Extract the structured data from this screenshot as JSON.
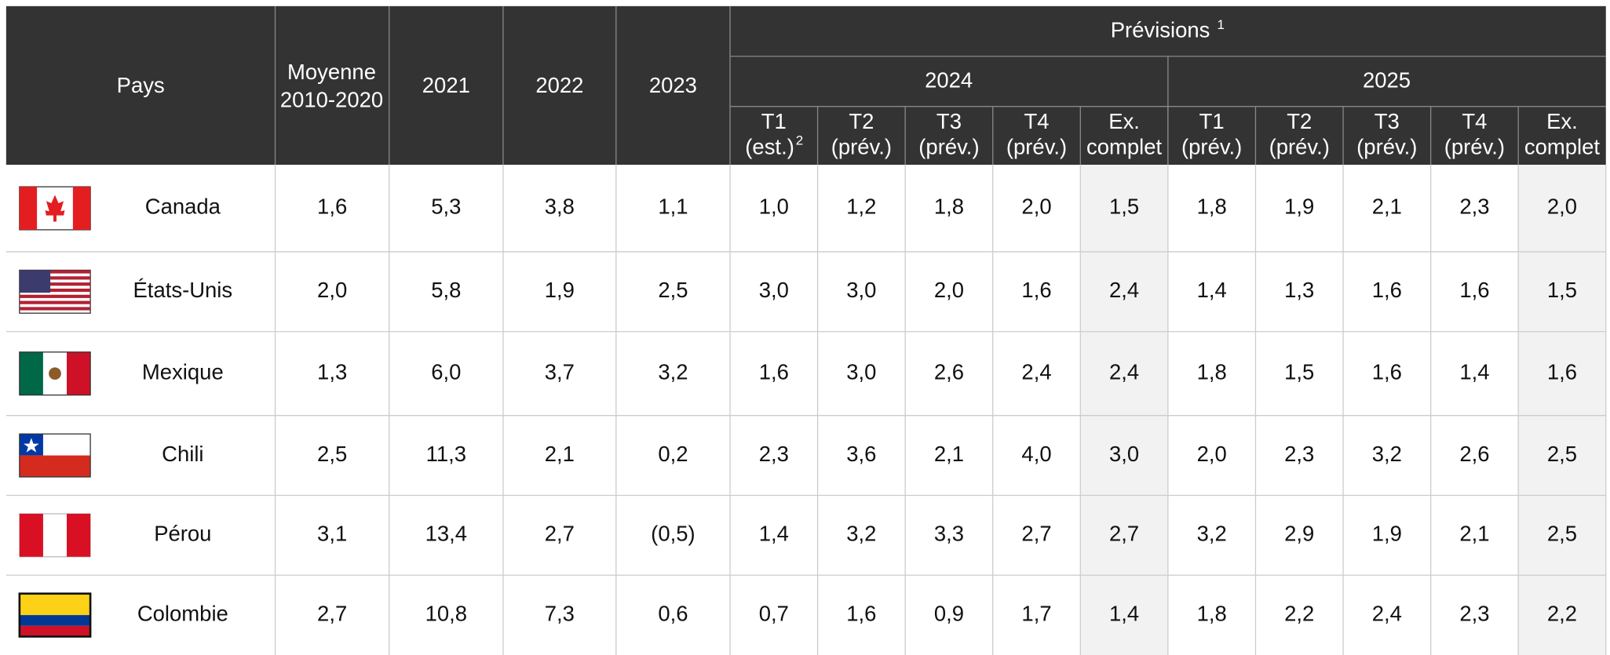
{
  "header": {
    "country": "Pays",
    "average": [
      "Moyenne",
      "2010-2020"
    ],
    "years": [
      "2021",
      "2022",
      "2023"
    ],
    "forecast": "Prévisions",
    "forecast_note": "1",
    "groups": [
      "2024",
      "2025"
    ],
    "subcolumns": [
      {
        "lines": [
          "T1",
          "(est.)"
        ],
        "note": "2"
      },
      {
        "lines": [
          "T2",
          "(prév.)"
        ]
      },
      {
        "lines": [
          "T3",
          "(prév.)"
        ]
      },
      {
        "lines": [
          "T4",
          "(prév.)"
        ]
      },
      {
        "lines": [
          "Ex.",
          "complet"
        ]
      },
      {
        "lines": [
          "T1",
          "(prév.)"
        ]
      },
      {
        "lines": [
          "T2",
          "(prév.)"
        ]
      },
      {
        "lines": [
          "T3",
          "(prév.)"
        ]
      },
      {
        "lines": [
          "T4",
          "(prév.)"
        ]
      },
      {
        "lines": [
          "Ex.",
          "complet"
        ]
      }
    ]
  },
  "rows": [
    {
      "country": "Canada",
      "values": [
        "1,6",
        "5,3",
        "3,8",
        "1,1",
        "1,0",
        "1,2",
        "1,8",
        "2,0",
        "1,5",
        "1,8",
        "1,9",
        "2,1",
        "2,3",
        "2,0"
      ]
    },
    {
      "country": "États-Unis",
      "values": [
        "2,0",
        "5,8",
        "1,9",
        "2,5",
        "3,0",
        "3,0",
        "2,0",
        "1,6",
        "2,4",
        "1,4",
        "1,3",
        "1,6",
        "1,6",
        "1,5"
      ]
    },
    {
      "country": "Mexique",
      "values": [
        "1,3",
        "6,0",
        "3,7",
        "3,2",
        "1,6",
        "3,0",
        "2,6",
        "2,4",
        "2,4",
        "1,8",
        "1,5",
        "1,6",
        "1,4",
        "1,6"
      ]
    },
    {
      "country": "Chili",
      "values": [
        "2,5",
        "11,3",
        "2,1",
        "0,2",
        "2,3",
        "3,6",
        "2,1",
        "4,0",
        "3,0",
        "2,0",
        "2,3",
        "3,2",
        "2,6",
        "2,5"
      ]
    },
    {
      "country": "Pérou",
      "values": [
        "3,1",
        "13,4",
        "2,7",
        "(0,5)",
        "1,4",
        "3,2",
        "3,3",
        "2,7",
        "2,7",
        "3,2",
        "2,9",
        "1,9",
        "2,1",
        "2,5"
      ]
    },
    {
      "country": "Colombie",
      "values": [
        "2,7",
        "10,8",
        "7,3",
        "0,6",
        "0,7",
        "1,6",
        "0,9",
        "1,7",
        "1,4",
        "1,8",
        "2,2",
        "2,4",
        "2,3",
        "2,2"
      ]
    }
  ]
}
